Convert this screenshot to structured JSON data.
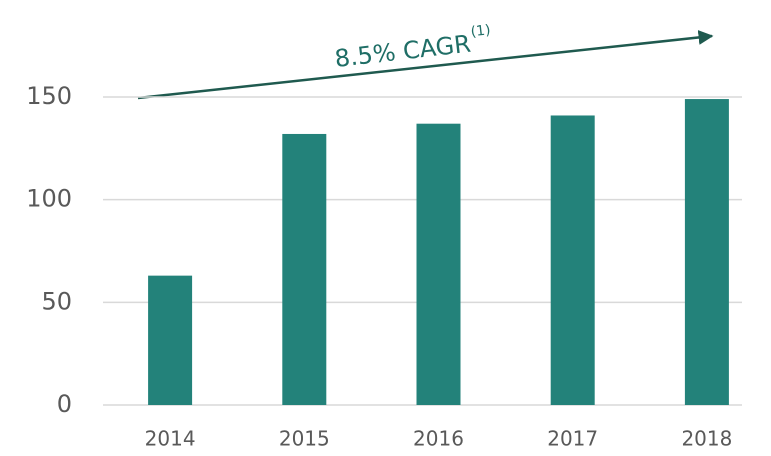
{
  "chart_data": {
    "type": "bar",
    "categories": [
      "2014",
      "2015",
      "2016",
      "2017",
      "2018"
    ],
    "values": [
      63,
      132,
      137,
      141,
      149
    ],
    "color": "#23827a",
    "ylim": [
      0,
      150
    ],
    "yticks": [
      0,
      50,
      100,
      150
    ],
    "grid": true,
    "annotation": {
      "text": "8.5% CAGR",
      "superscript": "(1)",
      "color": "#1f6e66"
    }
  }
}
